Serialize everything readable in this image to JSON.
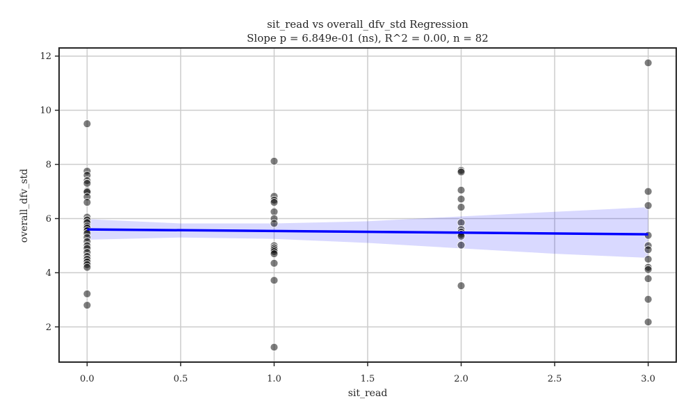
{
  "chart_data": {
    "type": "scatter",
    "title": "sit_read vs overall_dfv_std Regression",
    "subtitle": "Slope p = 6.849e-01 (ns), R^2 = 0.00, n = 82",
    "xlabel": "sit_read",
    "ylabel": "overall_dfv_std",
    "xlim": [
      -0.15,
      3.15
    ],
    "ylim": [
      0.7,
      12.3
    ],
    "xticks": [
      0.0,
      0.5,
      1.0,
      1.5,
      2.0,
      2.5,
      3.0
    ],
    "xtick_labels": [
      "0.0",
      "0.5",
      "1.0",
      "1.5",
      "2.0",
      "2.5",
      "3.0"
    ],
    "yticks": [
      2,
      4,
      6,
      8,
      10,
      12
    ],
    "ytick_labels": [
      "2",
      "4",
      "6",
      "8",
      "10",
      "12"
    ],
    "grid": true,
    "legend": "none",
    "colors": {
      "points": "#000000",
      "regression_line": "#0000ff",
      "confidence_band": "#0000ff",
      "grid": "#cccccc",
      "frame": "#262626"
    },
    "points": [
      {
        "x": 0,
        "y": 9.5
      },
      {
        "x": 0,
        "y": 7.75
      },
      {
        "x": 0,
        "y": 7.6
      },
      {
        "x": 0,
        "y": 7.4
      },
      {
        "x": 0,
        "y": 7.3
      },
      {
        "x": 0,
        "y": 7.02
      },
      {
        "x": 0,
        "y": 6.98
      },
      {
        "x": 0,
        "y": 6.8
      },
      {
        "x": 0,
        "y": 6.6
      },
      {
        "x": 0,
        "y": 6.05
      },
      {
        "x": 0,
        "y": 5.95
      },
      {
        "x": 0,
        "y": 5.85
      },
      {
        "x": 0,
        "y": 5.72
      },
      {
        "x": 0,
        "y": 5.65
      },
      {
        "x": 0,
        "y": 5.55
      },
      {
        "x": 0,
        "y": 5.45
      },
      {
        "x": 0,
        "y": 5.3
      },
      {
        "x": 0,
        "y": 5.15
      },
      {
        "x": 0,
        "y": 5.0
      },
      {
        "x": 0,
        "y": 4.9
      },
      {
        "x": 0,
        "y": 4.75
      },
      {
        "x": 0,
        "y": 4.6
      },
      {
        "x": 0,
        "y": 4.5
      },
      {
        "x": 0,
        "y": 4.4
      },
      {
        "x": 0,
        "y": 4.3
      },
      {
        "x": 0,
        "y": 4.2
      },
      {
        "x": 0,
        "y": 3.22
      },
      {
        "x": 0,
        "y": 2.8
      },
      {
        "x": 1,
        "y": 8.12
      },
      {
        "x": 1,
        "y": 6.82
      },
      {
        "x": 1,
        "y": 6.68
      },
      {
        "x": 1,
        "y": 6.6
      },
      {
        "x": 1,
        "y": 6.25
      },
      {
        "x": 1,
        "y": 6.0
      },
      {
        "x": 1,
        "y": 5.82
      },
      {
        "x": 1,
        "y": 5.0
      },
      {
        "x": 1,
        "y": 4.92
      },
      {
        "x": 1,
        "y": 4.85
      },
      {
        "x": 1,
        "y": 4.78
      },
      {
        "x": 1,
        "y": 4.7
      },
      {
        "x": 1,
        "y": 4.35
      },
      {
        "x": 1,
        "y": 3.72
      },
      {
        "x": 1,
        "y": 1.25
      },
      {
        "x": 2,
        "y": 7.78
      },
      {
        "x": 2,
        "y": 7.72
      },
      {
        "x": 2,
        "y": 7.05
      },
      {
        "x": 2,
        "y": 6.72
      },
      {
        "x": 2,
        "y": 6.42
      },
      {
        "x": 2,
        "y": 5.85
      },
      {
        "x": 2,
        "y": 5.6
      },
      {
        "x": 2,
        "y": 5.5
      },
      {
        "x": 2,
        "y": 5.42
      },
      {
        "x": 2,
        "y": 5.35
      },
      {
        "x": 2,
        "y": 5.02
      },
      {
        "x": 2,
        "y": 3.52
      },
      {
        "x": 3,
        "y": 11.75
      },
      {
        "x": 3,
        "y": 7.0
      },
      {
        "x": 3,
        "y": 6.48
      },
      {
        "x": 3,
        "y": 5.38
      },
      {
        "x": 3,
        "y": 5.0
      },
      {
        "x": 3,
        "y": 4.85
      },
      {
        "x": 3,
        "y": 4.5
      },
      {
        "x": 3,
        "y": 4.2
      },
      {
        "x": 3,
        "y": 4.12
      },
      {
        "x": 3,
        "y": 3.78
      },
      {
        "x": 3,
        "y": 3.02
      },
      {
        "x": 3,
        "y": 2.18
      }
    ],
    "regression_line": {
      "x": [
        0,
        3
      ],
      "y": [
        5.6,
        5.42
      ]
    },
    "confidence_band": {
      "x": [
        0,
        0.5,
        1.0,
        1.5,
        2.0,
        2.5,
        3.0
      ],
      "lower": [
        5.22,
        5.3,
        5.25,
        5.1,
        4.9,
        4.7,
        4.55
      ],
      "upper": [
        5.98,
        5.82,
        5.82,
        5.9,
        6.08,
        6.25,
        6.42
      ]
    }
  }
}
